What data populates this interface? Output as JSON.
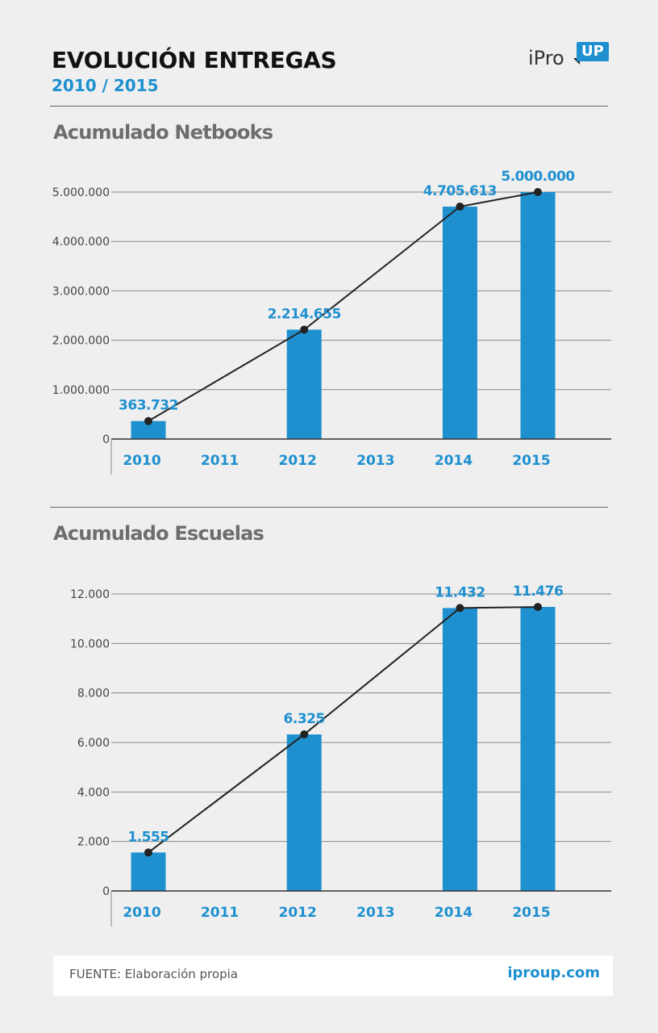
{
  "header": {
    "title": "EVOLUCIÓN ENTREGAS",
    "subtitle": "2010 / 2015",
    "logo_text": "iPro",
    "logo_badge": "UP"
  },
  "footer": {
    "source": "FUENTE: Elaboración propia",
    "site": "iproup.com"
  },
  "colors": {
    "bar": "#1e90d0",
    "line": "#222222",
    "label": "#1e90d0",
    "grid": "#8a8a8a"
  },
  "chart_data": [
    {
      "type": "bar",
      "title": "Acumulado Netbooks",
      "categories": [
        "2010",
        "2011",
        "2012",
        "2013",
        "2014",
        "2015"
      ],
      "values": [
        363732,
        null,
        2214655,
        null,
        4705613,
        5000000
      ],
      "data_labels": [
        "363.732",
        "",
        "2.214.655",
        "",
        "4.705.613",
        "5.000.000"
      ],
      "ylim": [
        0,
        5000000
      ],
      "yticks": [
        0,
        1000000,
        2000000,
        3000000,
        4000000,
        5000000
      ],
      "ytick_labels": [
        "0",
        "1.000.000",
        "2.000.000",
        "3.000.000",
        "4.000.000",
        "5.000.000"
      ],
      "line_overlay": true,
      "grid": true,
      "xlabel": "",
      "ylabel": ""
    },
    {
      "type": "bar",
      "title": "Acumulado Escuelas",
      "categories": [
        "2010",
        "2011",
        "2012",
        "2013",
        "2014",
        "2015"
      ],
      "values": [
        1555,
        null,
        6325,
        null,
        11432,
        11476
      ],
      "data_labels": [
        "1.555",
        "",
        "6.325",
        "",
        "11.432",
        "11.476"
      ],
      "ylim": [
        0,
        12000
      ],
      "yticks": [
        0,
        2000,
        4000,
        6000,
        8000,
        10000,
        12000
      ],
      "ytick_labels": [
        "0",
        "2.000",
        "4.000",
        "6.000",
        "8.000",
        "10.000",
        "12.000"
      ],
      "line_overlay": true,
      "grid": true,
      "xlabel": "",
      "ylabel": ""
    }
  ]
}
